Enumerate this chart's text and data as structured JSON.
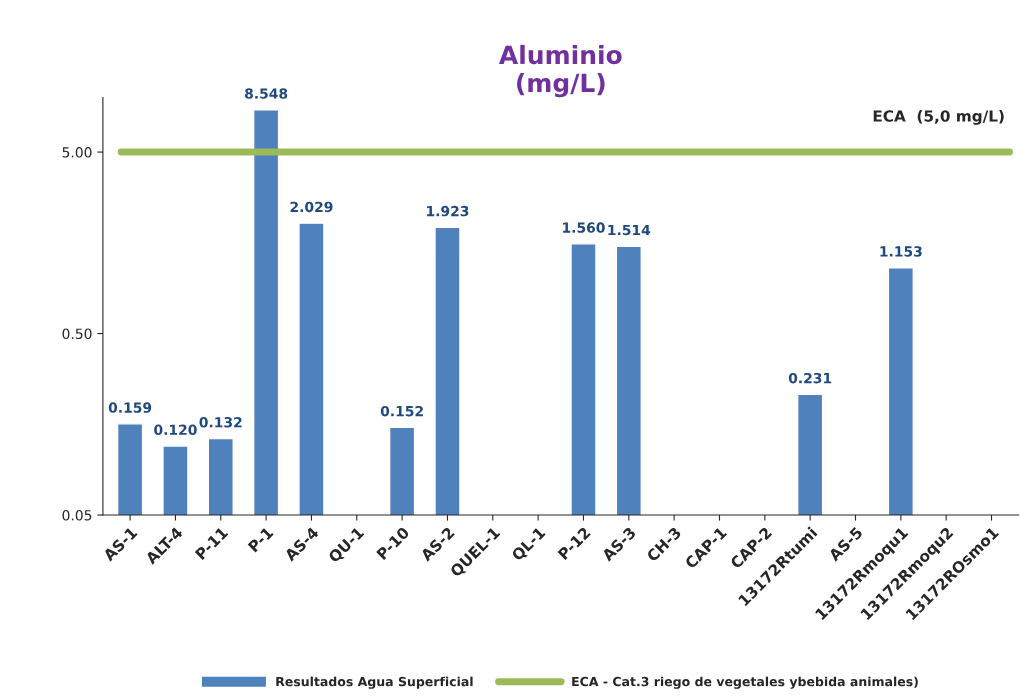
{
  "chart_data": {
    "type": "bar",
    "title": "Aluminio\n(mg/L)",
    "categories": [
      "AS-1",
      "ALT-4",
      "P-11",
      "P-1",
      "AS-4",
      "QU-1",
      "P-10",
      "AS-2",
      "QUEL-1",
      "QL-1",
      "P-12",
      "AS-3",
      "CH-3",
      "CAP-1",
      "CAP-2",
      "13172Rtumi",
      "AS-5",
      "13172Rmoqu1",
      "13172Rmoqu2",
      "13172ROsmo1"
    ],
    "series": [
      {
        "name": "Resultados Agua Superficial",
        "color": "#4f81bd",
        "values": [
          0.159,
          0.12,
          0.132,
          8.548,
          2.029,
          null,
          0.152,
          1.923,
          null,
          null,
          1.56,
          1.514,
          null,
          null,
          null,
          0.231,
          null,
          1.153,
          null,
          null
        ],
        "value_labels": [
          "0.159",
          "0.120",
          "0.132",
          "8.548",
          "2.029",
          null,
          "0.152",
          "1.923",
          null,
          null,
          "1.560",
          "1.514",
          null,
          null,
          null,
          "0.231",
          null,
          "1.153",
          null,
          null
        ]
      }
    ],
    "log": "y",
    "ylim": [
      0.05,
      10
    ],
    "yticks": [
      {
        "value": 0.05,
        "label": "0.05"
      },
      {
        "value": 0.5,
        "label": "0.50"
      },
      {
        "value": 5,
        "label": "5.00"
      }
    ],
    "ref_lines": [
      {
        "axis": "y",
        "value": 5,
        "label": "ECA - Cat.3 riego de vegetales ybebida animales)",
        "color": "#9bbb59"
      }
    ],
    "annotations": [
      "ECA  (5,0 mg/L)"
    ],
    "grid": false,
    "legend": "bottom"
  }
}
